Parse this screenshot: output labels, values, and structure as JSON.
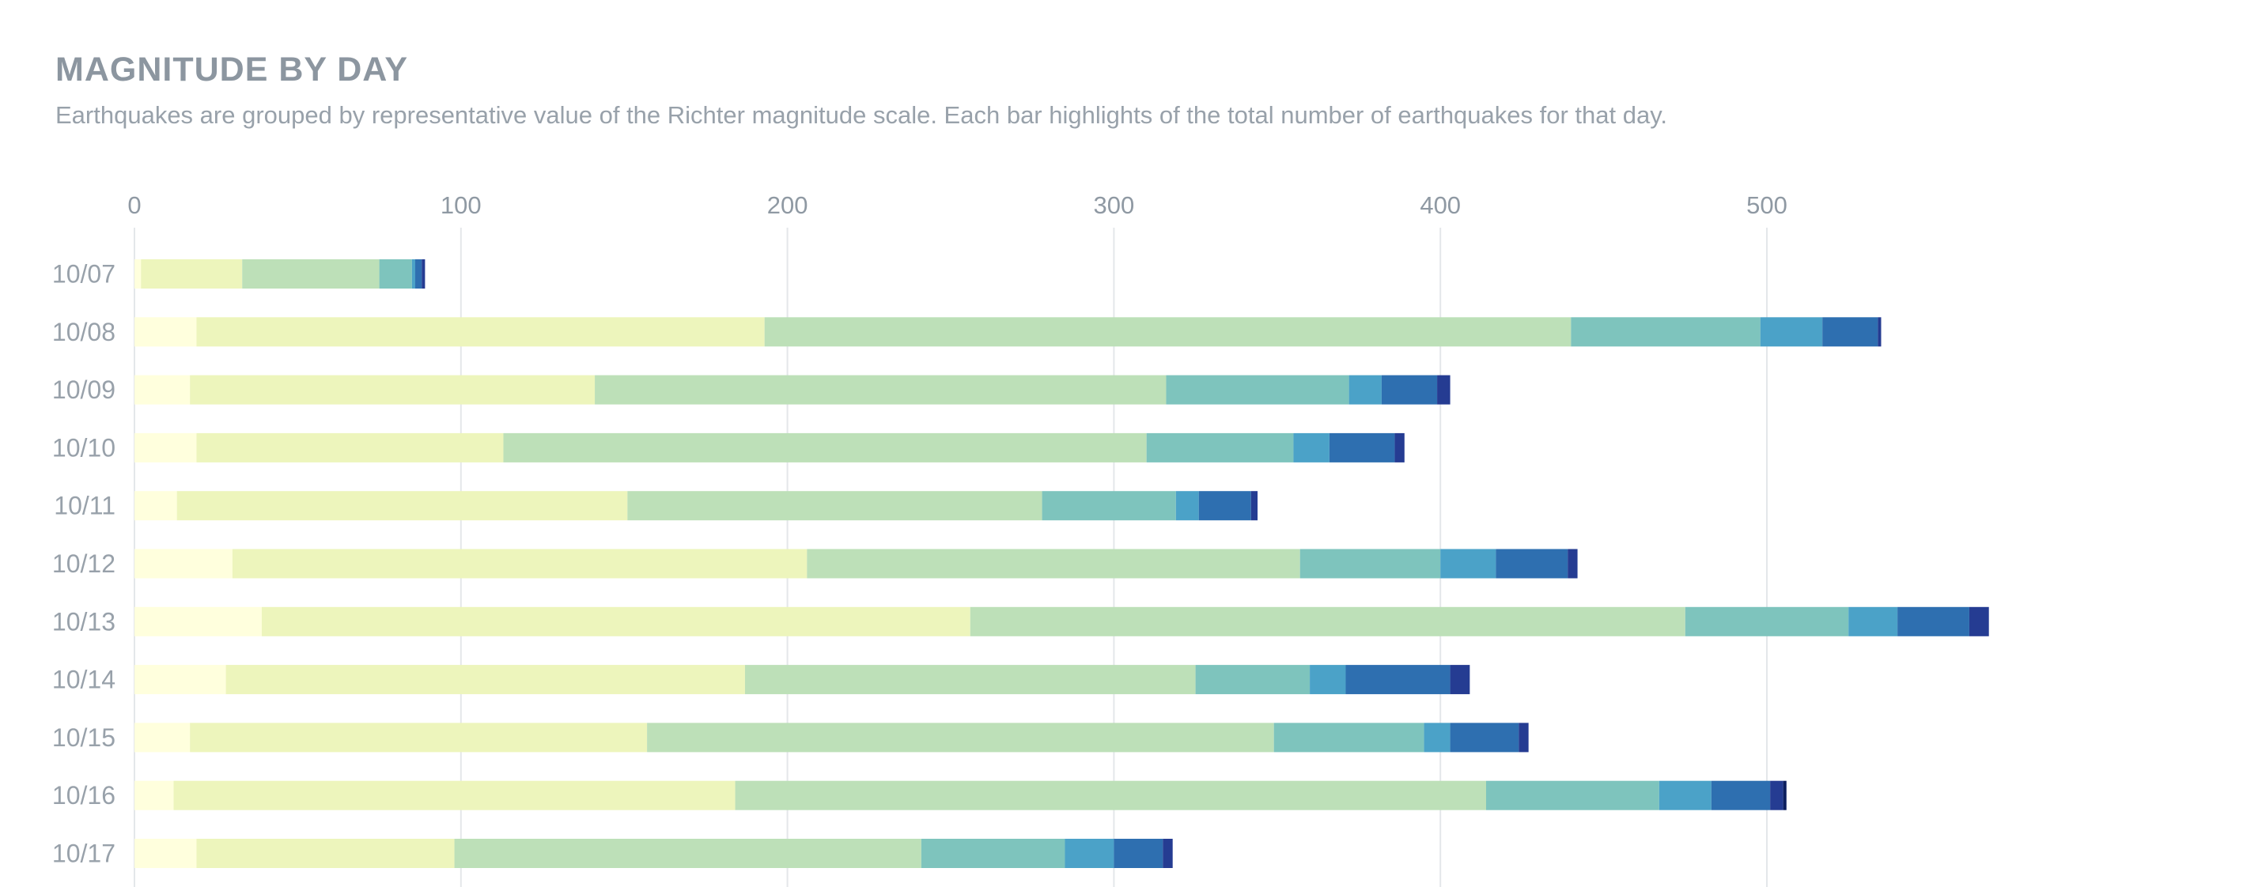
{
  "chart_data": {
    "type": "bar",
    "orientation": "horizontal",
    "stacked": true,
    "title": "MAGNITUDE BY DAY",
    "subtitle": "Earthquakes are grouped by representative value of the Richter magnitude scale. Each bar highlights of the total number of earthquakes for that day.",
    "categories": [
      "10/07",
      "10/08",
      "10/09",
      "10/10",
      "10/11",
      "10/12",
      "10/13",
      "10/14",
      "10/15",
      "10/16",
      "10/17"
    ],
    "xlim": [
      0,
      560
    ],
    "xticks": [
      0,
      100,
      200,
      300,
      400,
      500
    ],
    "grid": true,
    "legend": "none",
    "colors": [
      "#ffffdd",
      "#edf5bc",
      "#bde0b8",
      "#7ec4bd",
      "#4ba2c8",
      "#2e6fb0",
      "#253c92",
      "#0c1f5e"
    ],
    "series": [
      {
        "values": [
          2,
          19,
          17,
          19,
          13,
          30,
          39,
          28,
          17,
          12,
          19
        ]
      },
      {
        "values": [
          31,
          174,
          124,
          94,
          138,
          176,
          217,
          159,
          140,
          172,
          79
        ]
      },
      {
        "values": [
          42,
          247,
          175,
          197,
          127,
          151,
          219,
          138,
          192,
          230,
          143
        ]
      },
      {
        "values": [
          10,
          58,
          56,
          45,
          41,
          43,
          50,
          35,
          46,
          53,
          44
        ]
      },
      {
        "values": [
          1,
          19,
          10,
          11,
          7,
          17,
          15,
          11,
          8,
          16,
          15
        ]
      },
      {
        "values": [
          2,
          17,
          17,
          20,
          16,
          22,
          22,
          32,
          21,
          18,
          15
        ]
      },
      {
        "values": [
          1,
          1,
          4,
          3,
          2,
          3,
          6,
          6,
          3,
          4,
          3
        ]
      },
      {
        "values": [
          0,
          0,
          0,
          0,
          0,
          0,
          0,
          0,
          0,
          1,
          0
        ]
      }
    ]
  }
}
